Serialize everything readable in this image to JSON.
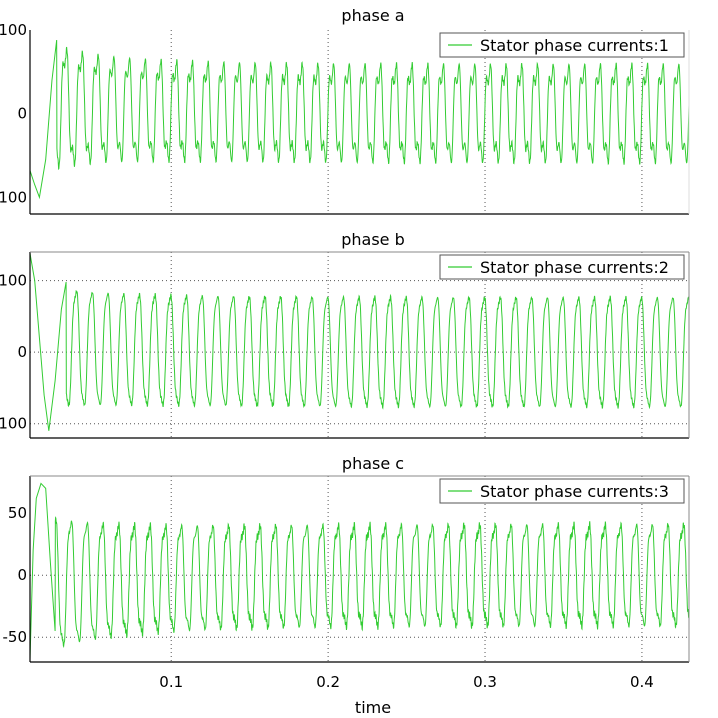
{
  "chart_data": [
    {
      "type": "line",
      "title": "phase a",
      "series": [
        {
          "name": "Stator phase currents:1",
          "color": "#33cc33"
        }
      ],
      "xlim": [
        0.01,
        0.43
      ],
      "ylim": [
        -120,
        100
      ],
      "x_ticks": [
        0.1,
        0.2,
        0.3,
        0.4
      ],
      "y_ticks": [
        100,
        0,
        -100
      ],
      "y_tick_labels": [
        "100",
        "0",
        "-100"
      ],
      "x_grid": [
        0.1,
        0.2,
        0.3,
        0.4
      ],
      "y_grid": [],
      "legend_position": "top-right",
      "signal": {
        "frequency_hz": 100,
        "phase_deg": 0,
        "steady_amplitude": 55,
        "transient_amplitude": 85,
        "dc_offset": 10,
        "dip_amplitude": 18,
        "decay_s": 0.03,
        "initial_values": [
          [
            0.01,
            -68
          ],
          [
            0.013,
            -85
          ],
          [
            0.016,
            -100
          ],
          [
            0.02,
            -55
          ],
          [
            0.024,
            40
          ],
          [
            0.027,
            88
          ]
        ]
      }
    },
    {
      "type": "line",
      "title": "phase b",
      "series": [
        {
          "name": "Stator phase currents:2",
          "color": "#33cc33"
        }
      ],
      "xlim": [
        0.01,
        0.43
      ],
      "ylim": [
        -120,
        140
      ],
      "x_ticks": [
        0.1,
        0.2,
        0.3,
        0.4
      ],
      "y_ticks": [
        100,
        0,
        -100
      ],
      "y_tick_labels": [
        "100",
        "0",
        "-100"
      ],
      "x_grid": [
        0.1,
        0.2,
        0.3,
        0.4
      ],
      "y_grid": [
        100,
        0,
        -100
      ],
      "legend_position": "top-right",
      "signal": {
        "frequency_hz": 100,
        "phase_deg": 120,
        "steady_amplitude": 80,
        "transient_amplitude": 90,
        "dc_offset": 8,
        "dip_amplitude": 10,
        "decay_s": 0.03,
        "initial_values": [
          [
            0.01,
            138
          ],
          [
            0.013,
            100
          ],
          [
            0.016,
            20
          ],
          [
            0.019,
            -60
          ],
          [
            0.022,
            -110
          ],
          [
            0.026,
            -40
          ],
          [
            0.03,
            60
          ],
          [
            0.033,
            98
          ]
        ]
      }
    },
    {
      "type": "line",
      "title": "phase c",
      "series": [
        {
          "name": "Stator phase currents:3",
          "color": "#33cc33"
        }
      ],
      "xlim": [
        0.01,
        0.43
      ],
      "ylim": [
        -70,
        80
      ],
      "x_ticks": [
        0.1,
        0.2,
        0.3,
        0.4
      ],
      "x_tick_labels": [
        "0.1",
        "0.2",
        "0.3",
        "0.4"
      ],
      "y_ticks": [
        50,
        0,
        -50
      ],
      "y_tick_labels": [
        "50",
        "0",
        "-50"
      ],
      "x_grid": [
        0.1,
        0.2,
        0.3,
        0.4
      ],
      "y_grid": [
        0,
        -50
      ],
      "legend_position": "top-right",
      "xlabel": "time",
      "signal": {
        "frequency_hz": 100,
        "phase_deg": 240,
        "steady_amplitude": 42,
        "transient_amplitude": 60,
        "dc_offset": -8,
        "dip_amplitude": 8,
        "decay_s": 0.04,
        "initial_values": [
          [
            0.01,
            -68
          ],
          [
            0.012,
            20
          ],
          [
            0.014,
            62
          ],
          [
            0.017,
            74
          ],
          [
            0.02,
            70
          ],
          [
            0.023,
            10
          ],
          [
            0.026,
            -45
          ]
        ]
      }
    }
  ],
  "colors": {
    "line": "#33cc33",
    "axis": "#000000",
    "grid": "#555555",
    "legend_border": "#555555"
  }
}
